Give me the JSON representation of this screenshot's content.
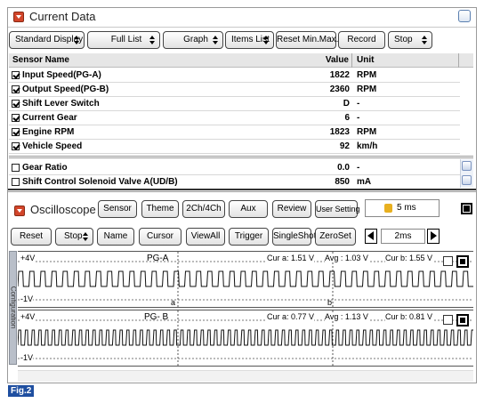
{
  "window": {
    "title": "Current Data"
  },
  "toolbar": [
    "Standard Display",
    "Full List",
    "Graph",
    "Items List",
    "Reset Min.Max.",
    "Record",
    "Stop"
  ],
  "table": {
    "headers": [
      "Sensor Name",
      "Value",
      "Unit"
    ],
    "rows": [
      {
        "name": "Input Speed(PG-A)",
        "value": "1822",
        "unit": "RPM",
        "checked": true
      },
      {
        "name": "Output Speed(PG-B)",
        "value": "2360",
        "unit": "RPM",
        "checked": true
      },
      {
        "name": "Shift Lever Switch",
        "value": "D",
        "unit": "-",
        "checked": true
      },
      {
        "name": "Current Gear",
        "value": "6",
        "unit": "-",
        "checked": true
      },
      {
        "name": "Engine RPM",
        "value": "1823",
        "unit": "RPM",
        "checked": true
      },
      {
        "name": "Vehicle Speed",
        "value": "92",
        "unit": "km/h",
        "checked": true
      },
      {
        "name": "Gear Ratio",
        "value": "0.0",
        "unit": "-",
        "checked": false
      },
      {
        "name": "Shift Control Solenoid Valve A(UD/B)",
        "value": "850",
        "unit": "mA",
        "checked": false
      }
    ]
  },
  "oscilloscope": {
    "title": "Oscilloscope",
    "buttons": [
      "Sensor",
      "Theme",
      "2Ch/4Ch",
      "Aux",
      "Review",
      "User Setting"
    ],
    "timebase": "5 ms",
    "controls": [
      "Reset",
      "Stop",
      "Name",
      "Cursor",
      "ViewAll",
      "Trigger",
      "SingleShot",
      "ZeroSet"
    ],
    "time_div": "2ms",
    "side_tab": "Configuration",
    "channels": [
      {
        "max": "+4V",
        "name": "PG-A",
        "cur_a": "Cur a: 1.51 V",
        "avg": "Avg : 1.03 V",
        "cur_b": "Cur b: 1.55 V",
        "min": "-1V",
        "cursor_a": "a",
        "cursor_b": "b"
      },
      {
        "max": "+4V",
        "name": "PG- B",
        "cur_a": "Cur a: 0.77 V",
        "avg": "Avg : 1.13 V",
        "cur_b": "Cur b: 0.81 V",
        "min": "-1V"
      }
    ]
  },
  "figure_label": "Fig.2"
}
